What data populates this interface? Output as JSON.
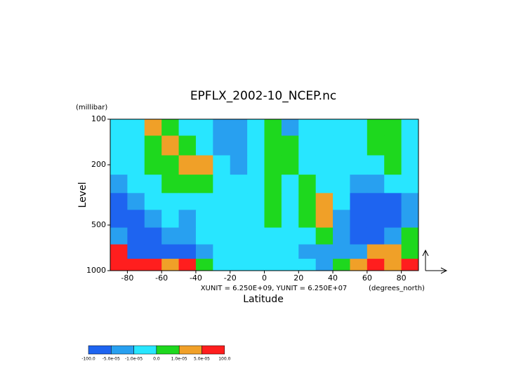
{
  "chart_data": {
    "type": "contour",
    "title": "EPFLX_2002-10_NCEP.nc",
    "y_unit_label": "(millibar)",
    "y_label": "Level",
    "x_label": "Latitude",
    "x_unit_label": "(degrees_north)",
    "annotation": "XUNIT = 6.250E+09, YUNIT = 6.250E+07",
    "xlim": [
      -90,
      90
    ],
    "xticks": [
      -80,
      -60,
      -40,
      -20,
      0,
      20,
      40,
      60,
      80
    ],
    "ylim": [
      1000,
      100
    ],
    "yticks": [
      100,
      200,
      500,
      1000
    ],
    "log_y": true,
    "x": [
      -85,
      -75,
      -65,
      -55,
      -45,
      -35,
      -25,
      -15,
      -5,
      5,
      15,
      25,
      35,
      45,
      55,
      65,
      75,
      85
    ],
    "y": [
      110,
      150,
      200,
      270,
      350,
      450,
      600,
      750,
      930
    ],
    "z": [
      [
        -5e-06,
        -5e-06,
        3e-05,
        5e-06,
        -5e-06,
        -5e-06,
        -3e-05,
        -3e-05,
        -5e-06,
        5e-06,
        -3e-05,
        -5e-06,
        -5e-06,
        -5e-06,
        -5e-06,
        5e-06,
        5e-06,
        -5e-06
      ],
      [
        -5e-06,
        -5e-06,
        5e-06,
        3e-05,
        5e-06,
        -5e-06,
        -3e-05,
        -3e-05,
        -5e-06,
        5e-06,
        5e-06,
        -5e-06,
        -5e-06,
        -5e-06,
        -5e-06,
        5e-06,
        5e-06,
        -5e-06
      ],
      [
        -5e-06,
        -5e-06,
        5e-06,
        5e-06,
        3e-05,
        3e-05,
        -5e-06,
        -3e-05,
        -5e-06,
        5e-06,
        5e-06,
        -5e-06,
        -5e-06,
        -5e-06,
        -5e-06,
        -5e-06,
        5e-06,
        -5e-06
      ],
      [
        -3e-05,
        -5e-06,
        -5e-06,
        5e-06,
        5e-06,
        5e-06,
        -5e-06,
        -5e-06,
        -5e-06,
        5e-06,
        -5e-06,
        5e-06,
        -5e-06,
        -5e-06,
        -3e-05,
        -3e-05,
        -5e-06,
        -5e-06
      ],
      [
        -8e-05,
        -3e-05,
        -5e-06,
        -5e-06,
        -5e-06,
        -5e-06,
        -5e-06,
        -5e-06,
        -5e-06,
        5e-06,
        -5e-06,
        5e-06,
        3e-05,
        -5e-06,
        -8e-05,
        -8e-05,
        -8e-05,
        -3e-05
      ],
      [
        -8e-05,
        -8e-05,
        -3e-05,
        -5e-06,
        -3e-05,
        -5e-06,
        -5e-06,
        -5e-06,
        -5e-06,
        5e-06,
        -5e-06,
        5e-06,
        3e-05,
        -3e-05,
        -8e-05,
        -8e-05,
        -8e-05,
        -3e-05
      ],
      [
        -3e-05,
        -8e-05,
        -8e-05,
        -3e-05,
        -3e-05,
        -5e-06,
        -5e-06,
        -5e-06,
        -5e-06,
        -5e-06,
        -5e-06,
        -5e-06,
        5e-06,
        -3e-05,
        -8e-05,
        -8e-05,
        -3e-05,
        5e-06
      ],
      [
        8e-05,
        -8e-05,
        -8e-05,
        -8e-05,
        -8e-05,
        -3e-05,
        -5e-06,
        -5e-06,
        -5e-06,
        -5e-06,
        -5e-06,
        -3e-05,
        -3e-05,
        -3e-05,
        -3e-05,
        3e-05,
        3e-05,
        5e-06
      ],
      [
        8e-05,
        8e-05,
        8e-05,
        3e-05,
        8e-05,
        5e-06,
        -5e-06,
        -5e-06,
        -5e-06,
        -5e-06,
        -5e-06,
        -5e-06,
        -3e-05,
        5e-06,
        3e-05,
        8e-05,
        3e-05,
        8e-05
      ]
    ],
    "levels": [
      {
        "value": -100,
        "label": "-100.0"
      },
      {
        "value": -5e-05,
        "label": "-5.0e-05"
      },
      {
        "value": -1e-05,
        "label": "-1.0e-05"
      },
      {
        "value": 0,
        "label": "0.0"
      },
      {
        "value": 1e-05,
        "label": "1.0e-05"
      },
      {
        "value": 5e-05,
        "label": "5.0e-05"
      },
      {
        "value": 100,
        "label": "100.0"
      }
    ],
    "colors": [
      "#1e64f0",
      "#28a0f0",
      "#28e6ff",
      "#1ed81e",
      "#f0a028",
      "#ff1e1e"
    ]
  }
}
